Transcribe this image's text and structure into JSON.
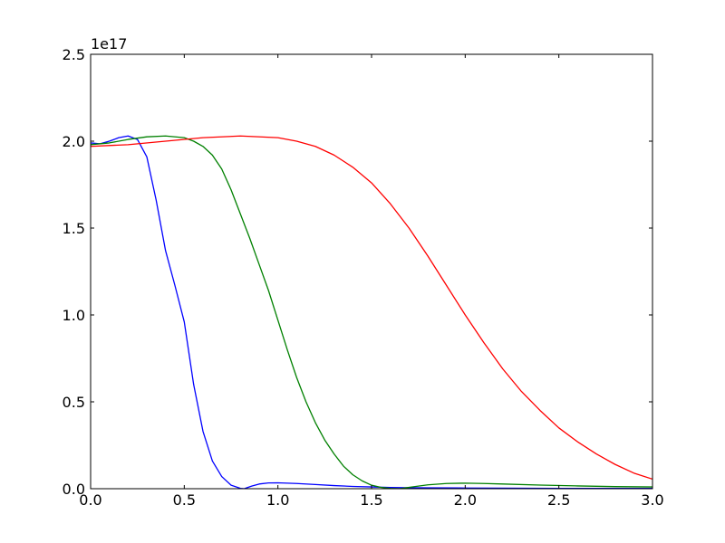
{
  "chart_data": {
    "type": "line",
    "title": "",
    "xlabel": "",
    "ylabel": "",
    "y_offset_text": "1e17",
    "xlim": [
      0,
      3
    ],
    "ylim": [
      0,
      2.5
    ],
    "grid": false,
    "legend": "none",
    "x_ticks": [
      {
        "value": 0.0,
        "label": "0.0"
      },
      {
        "value": 0.5,
        "label": "0.5"
      },
      {
        "value": 1.0,
        "label": "1.0"
      },
      {
        "value": 1.5,
        "label": "1.5"
      },
      {
        "value": 2.0,
        "label": "2.0"
      },
      {
        "value": 2.5,
        "label": "2.5"
      },
      {
        "value": 3.0,
        "label": "3.0"
      }
    ],
    "y_ticks": [
      {
        "value": 0.0,
        "label": "0.0"
      },
      {
        "value": 0.5,
        "label": "0.5"
      },
      {
        "value": 1.0,
        "label": "1.0"
      },
      {
        "value": 1.5,
        "label": "1.5"
      },
      {
        "value": 2.0,
        "label": "2.0"
      },
      {
        "value": 2.5,
        "label": "2.5"
      }
    ],
    "series": [
      {
        "color": "#0000ff",
        "points": [
          [
            0.0,
            1.99
          ],
          [
            0.05,
            1.985
          ],
          [
            0.1,
            2.0
          ],
          [
            0.15,
            2.02
          ],
          [
            0.2,
            2.03
          ],
          [
            0.25,
            2.01
          ],
          [
            0.3,
            1.91
          ],
          [
            0.35,
            1.66
          ],
          [
            0.4,
            1.37
          ],
          [
            0.45,
            1.17
          ],
          [
            0.5,
            0.96
          ],
          [
            0.55,
            0.6
          ],
          [
            0.6,
            0.33
          ],
          [
            0.65,
            0.16
          ],
          [
            0.7,
            0.07
          ],
          [
            0.75,
            0.02
          ],
          [
            0.8,
            0.002
          ],
          [
            0.82,
            0.0
          ],
          [
            0.86,
            0.015
          ],
          [
            0.9,
            0.027
          ],
          [
            0.95,
            0.033
          ],
          [
            1.0,
            0.034
          ],
          [
            1.1,
            0.03
          ],
          [
            1.2,
            0.024
          ],
          [
            1.3,
            0.018
          ],
          [
            1.4,
            0.013
          ],
          [
            1.5,
            0.01
          ],
          [
            1.6,
            0.007
          ],
          [
            1.7,
            0.006
          ],
          [
            1.8,
            0.005
          ],
          [
            2.0,
            0.004
          ],
          [
            2.2,
            0.003
          ],
          [
            2.5,
            0.002
          ],
          [
            2.8,
            0.002
          ],
          [
            3.0,
            0.002
          ]
        ]
      },
      {
        "color": "#008000",
        "points": [
          [
            0.0,
            1.98
          ],
          [
            0.1,
            1.99
          ],
          [
            0.2,
            2.01
          ],
          [
            0.3,
            2.025
          ],
          [
            0.4,
            2.03
          ],
          [
            0.5,
            2.02
          ],
          [
            0.55,
            2.0
          ],
          [
            0.6,
            1.97
          ],
          [
            0.65,
            1.92
          ],
          [
            0.7,
            1.84
          ],
          [
            0.75,
            1.72
          ],
          [
            0.8,
            1.58
          ],
          [
            0.85,
            1.44
          ],
          [
            0.9,
            1.29
          ],
          [
            0.95,
            1.14
          ],
          [
            1.0,
            0.97
          ],
          [
            1.05,
            0.8
          ],
          [
            1.1,
            0.64
          ],
          [
            1.15,
            0.5
          ],
          [
            1.2,
            0.38
          ],
          [
            1.25,
            0.28
          ],
          [
            1.3,
            0.2
          ],
          [
            1.35,
            0.13
          ],
          [
            1.4,
            0.08
          ],
          [
            1.45,
            0.045
          ],
          [
            1.5,
            0.02
          ],
          [
            1.55,
            0.008
          ],
          [
            1.6,
            0.002
          ],
          [
            1.65,
            0.0
          ],
          [
            1.7,
            0.008
          ],
          [
            1.8,
            0.022
          ],
          [
            1.9,
            0.03
          ],
          [
            2.0,
            0.032
          ],
          [
            2.1,
            0.03
          ],
          [
            2.2,
            0.027
          ],
          [
            2.4,
            0.021
          ],
          [
            2.6,
            0.016
          ],
          [
            2.8,
            0.012
          ],
          [
            3.0,
            0.01
          ]
        ]
      },
      {
        "color": "#ff0000",
        "points": [
          [
            0.0,
            1.97
          ],
          [
            0.2,
            1.98
          ],
          [
            0.4,
            2.0
          ],
          [
            0.6,
            2.02
          ],
          [
            0.8,
            2.03
          ],
          [
            1.0,
            2.02
          ],
          [
            1.1,
            2.0
          ],
          [
            1.2,
            1.97
          ],
          [
            1.3,
            1.92
          ],
          [
            1.4,
            1.85
          ],
          [
            1.5,
            1.76
          ],
          [
            1.6,
            1.64
          ],
          [
            1.7,
            1.5
          ],
          [
            1.8,
            1.34
          ],
          [
            1.9,
            1.17
          ],
          [
            2.0,
            1.0
          ],
          [
            2.1,
            0.84
          ],
          [
            2.2,
            0.69
          ],
          [
            2.3,
            0.56
          ],
          [
            2.4,
            0.45
          ],
          [
            2.5,
            0.35
          ],
          [
            2.6,
            0.27
          ],
          [
            2.7,
            0.2
          ],
          [
            2.8,
            0.14
          ],
          [
            2.9,
            0.09
          ],
          [
            3.0,
            0.055
          ]
        ]
      }
    ]
  }
}
